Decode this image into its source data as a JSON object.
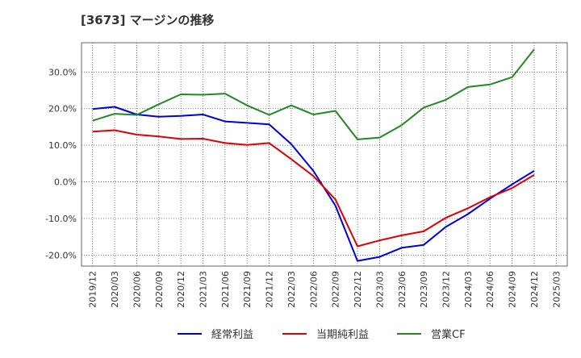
{
  "chart_data": {
    "type": "line",
    "title": "[3673]  マージンの推移",
    "xlabel": "",
    "ylabel": "",
    "x": [
      "2019/12",
      "2020/03",
      "2020/06",
      "2020/09",
      "2020/12",
      "2021/03",
      "2021/06",
      "2021/09",
      "2021/12",
      "2022/03",
      "2022/06",
      "2022/09",
      "2022/12",
      "2023/03",
      "2023/06",
      "2023/09",
      "2023/12",
      "2024/03",
      "2024/06",
      "2024/09",
      "2024/12",
      "2025/03"
    ],
    "ylim": [
      -23,
      38
    ],
    "yticks": [
      -20,
      -10,
      0,
      10,
      20,
      30
    ],
    "ytick_labels": [
      "-20.0%",
      "-10.0%",
      "0.0%",
      "10.0%",
      "20.0%",
      "30.0%"
    ],
    "grid": true,
    "legend_position": "bottom",
    "series": [
      {
        "name": "経常利益",
        "color": "#0000dd",
        "values": [
          19.9,
          20.5,
          18.4,
          17.8,
          18.0,
          18.4,
          16.5,
          16.1,
          15.7,
          10.3,
          3.0,
          -6.5,
          -21.6,
          -20.5,
          -18.0,
          -17.2,
          -12.3,
          -8.8,
          -4.6,
          -0.7,
          3.0,
          null
        ]
      },
      {
        "name": "当期純利益",
        "color": "#dd0000",
        "values": [
          13.7,
          14.1,
          12.9,
          12.4,
          11.7,
          11.8,
          10.6,
          10.1,
          10.6,
          6.2,
          1.6,
          -4.8,
          -17.6,
          -16.0,
          -14.6,
          -13.5,
          -9.8,
          -7.2,
          -4.2,
          -1.7,
          1.9,
          null
        ]
      },
      {
        "name": "営業CF",
        "color": "#228822",
        "values": [
          16.7,
          18.6,
          18.3,
          21.2,
          23.9,
          23.8,
          24.1,
          20.9,
          18.3,
          20.9,
          18.4,
          19.4,
          11.6,
          12.1,
          15.5,
          20.3,
          22.4,
          25.9,
          26.6,
          28.6,
          36.2,
          null
        ]
      }
    ]
  }
}
